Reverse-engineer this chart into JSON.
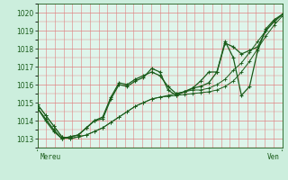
{
  "xlabel_left": "Mereu",
  "xlabel_right": "Ven",
  "ylim": [
    1012.5,
    1020.5
  ],
  "yticks": [
    1013,
    1014,
    1015,
    1016,
    1017,
    1018,
    1019,
    1020
  ],
  "background_color": "#cceedd",
  "plot_bg_color": "#dff5eb",
  "grid_color": "#e08080",
  "line_color": "#1a5c1a",
  "marker_color": "#1a5c1a",
  "series": [
    [
      1014.9,
      1014.3,
      1013.7,
      1013.1,
      1013.0,
      1013.1,
      1013.2,
      1013.4,
      1013.6,
      1013.9,
      1014.2,
      1014.5,
      1014.8,
      1015.0,
      1015.2,
      1015.3,
      1015.4,
      1015.5,
      1015.6,
      1015.7,
      1015.7,
      1015.8,
      1016.0,
      1016.3,
      1016.8,
      1017.2,
      1017.8,
      1018.4,
      1019.0,
      1019.5,
      1019.9
    ],
    [
      1014.9,
      1014.3,
      1013.7,
      1013.1,
      1013.0,
      1013.1,
      1013.2,
      1013.4,
      1013.6,
      1013.9,
      1014.2,
      1014.5,
      1014.8,
      1015.0,
      1015.2,
      1015.3,
      1015.35,
      1015.4,
      1015.45,
      1015.5,
      1015.55,
      1015.6,
      1015.7,
      1015.9,
      1016.2,
      1016.7,
      1017.3,
      1018.0,
      1018.7,
      1019.3,
      1019.8
    ],
    [
      1014.7,
      1014.1,
      1013.5,
      1013.0,
      1013.1,
      1013.2,
      1013.6,
      1014.0,
      1014.2,
      1015.3,
      1016.1,
      1016.0,
      1016.3,
      1016.5,
      1016.7,
      1016.5,
      1015.9,
      1015.5,
      1015.6,
      1015.8,
      1015.9,
      1016.1,
      1016.7,
      1018.3,
      1018.1,
      1017.7,
      1017.9,
      1018.1,
      1019.0,
      1019.5,
      1019.9
    ],
    [
      1014.7,
      1014.0,
      1013.4,
      1013.0,
      1013.1,
      1013.2,
      1013.6,
      1014.0,
      1014.1,
      1015.2,
      1016.0,
      1015.9,
      1016.2,
      1016.4,
      1016.9,
      1016.7,
      1015.7,
      1015.4,
      1015.6,
      1015.8,
      1016.2,
      1016.7,
      1016.7,
      1018.4,
      1017.5,
      1015.4,
      1015.9,
      1017.9,
      1019.1,
      1019.6,
      1019.9
    ]
  ],
  "figsize": [
    3.2,
    2.0
  ],
  "dpi": 100
}
